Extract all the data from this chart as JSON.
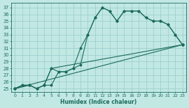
{
  "xlabel": "Humidex (Indice chaleur)",
  "bg_color": "#c2e8e4",
  "grid_color": "#96ccc8",
  "line_color": "#1a6b5a",
  "xlim": [
    -0.5,
    23.5
  ],
  "ylim": [
    24.5,
    37.7
  ],
  "xticks": [
    0,
    1,
    2,
    3,
    4,
    5,
    6,
    7,
    8,
    9,
    10,
    11,
    12,
    13,
    14,
    15,
    16,
    17,
    18,
    19,
    20,
    21,
    22,
    23
  ],
  "yticks": [
    25,
    26,
    27,
    28,
    29,
    30,
    31,
    32,
    33,
    34,
    35,
    36,
    37
  ],
  "curve1_x": [
    0,
    1,
    2,
    3,
    4,
    5,
    6,
    7,
    8,
    9,
    10,
    11,
    12,
    13,
    14,
    15,
    16,
    17,
    18,
    19,
    20,
    21,
    22,
    23
  ],
  "curve1_y": [
    25.0,
    25.5,
    25.5,
    25.0,
    25.5,
    25.5,
    27.5,
    27.5,
    28.0,
    31.0,
    33.0,
    35.5,
    37.0,
    36.5,
    35.0,
    36.5,
    36.5,
    36.5,
    35.5,
    35.0,
    35.0,
    34.5,
    33.0,
    31.5
  ],
  "curve2_x": [
    0,
    1,
    2,
    3,
    4,
    5,
    6,
    7,
    8,
    9,
    10,
    11,
    12,
    13,
    14,
    15,
    16,
    17,
    18,
    19,
    20,
    21,
    22,
    23
  ],
  "curve2_y": [
    25.0,
    25.5,
    25.5,
    25.0,
    25.5,
    28.0,
    27.5,
    27.5,
    28.0,
    28.5,
    33.0,
    35.5,
    37.0,
    36.5,
    35.0,
    36.5,
    36.5,
    36.5,
    35.5,
    35.0,
    35.0,
    34.5,
    33.0,
    31.5
  ],
  "trend1_x": [
    0,
    2,
    3,
    4,
    5,
    23
  ],
  "trend1_y": [
    25.0,
    25.5,
    25.0,
    25.5,
    28.0,
    31.5
  ],
  "trend2_x": [
    0,
    23
  ],
  "trend2_y": [
    25.0,
    31.5
  ]
}
